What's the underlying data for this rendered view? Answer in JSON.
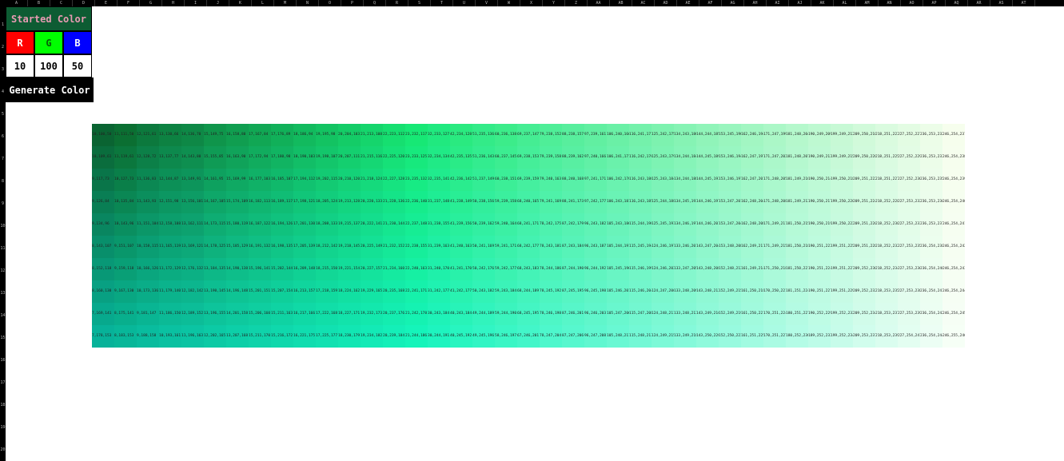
{
  "spreadsheet": {
    "columns": [
      "A",
      "B",
      "C",
      "D",
      "E",
      "F",
      "G",
      "H",
      "I",
      "J",
      "K",
      "L",
      "M",
      "N",
      "O",
      "P",
      "Q",
      "R",
      "S",
      "T",
      "U",
      "V",
      "W",
      "X",
      "Y",
      "Z",
      "AA",
      "AB",
      "AC",
      "AD",
      "AE",
      "AF",
      "AG",
      "AH",
      "AI",
      "AJ",
      "AK",
      "AL",
      "AM",
      "AN",
      "AO",
      "AP",
      "AQ",
      "AR",
      "AS",
      "AT"
    ],
    "rows": [
      "1",
      "2",
      "3",
      "4",
      "5",
      "6",
      "7",
      "8",
      "9",
      "10",
      "11",
      "12",
      "13",
      "14",
      "15",
      "16",
      "17",
      "18",
      "19",
      "20"
    ]
  },
  "panel": {
    "title": "Started Color",
    "r_label": "R",
    "g_label": "G",
    "b_label": "B",
    "r_value": "10",
    "g_value": "100",
    "b_value": "50",
    "generate_label": "Generate Color"
  },
  "gradient": {
    "start_rgb": [
      10,
      100,
      50
    ],
    "columns": 39,
    "rows": 10,
    "first_row_labels": [
      "10,100,50",
      "11,111,50",
      "12,121,61",
      "13,130,66",
      "14,136,70",
      "15,149,75",
      "16,158,80",
      "17,167,84",
      "17,176,89",
      "18,186,94",
      "19,195,98",
      "20,204,103",
      "21,213,108",
      "22,223,112",
      "23,232,117",
      "32,233,127",
      "42,234,128",
      "51,235,136",
      "60,236,138",
      "69,237,147",
      "79,238,152",
      "88,238,157",
      "97,239,161",
      "106,240,166",
      "116,241,171",
      "125,242,175",
      "134,243,180",
      "144,244,185",
      "153,245,190",
      "162,246,194",
      "171,247,199",
      "181,248,204",
      "190,249,209",
      "199,249,213",
      "209,250,218",
      "218,251,223",
      "227,252,227",
      "236,253,232",
      "246,254,237"
    ]
  },
  "colors": {
    "title_bg": "#0d5c33",
    "title_text": "#e89bb3",
    "r_bg": "#ff0000",
    "g_bg": "#00ff00",
    "b_bg": "#0000ff",
    "button_bg": "#000000"
  }
}
